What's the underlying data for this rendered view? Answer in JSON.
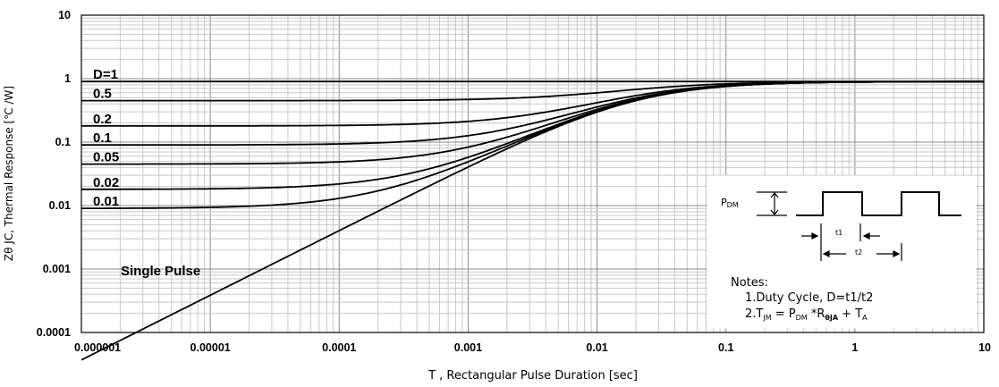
{
  "chart_data": {
    "type": "line",
    "xscale": "log",
    "yscale": "log",
    "xlim": [
      1e-06,
      10
    ],
    "ylim": [
      0.0001,
      10
    ],
    "xlabel": "T , Rectangular Pulse Duration [sec]",
    "ylabel": "Zθ JC, Thermal Response [℃ /W]",
    "xticks": [
      {
        "value": 1e-06,
        "label": "0.000001"
      },
      {
        "value": 1e-05,
        "label": "0.00001"
      },
      {
        "value": 0.0001,
        "label": "0.0001"
      },
      {
        "value": 0.001,
        "label": "0.001"
      },
      {
        "value": 0.01,
        "label": "0.01"
      },
      {
        "value": 0.1,
        "label": "0.1"
      },
      {
        "value": 1,
        "label": "1"
      },
      {
        "value": 10,
        "label": "10"
      }
    ],
    "yticks": [
      {
        "value": 10,
        "label": "10"
      },
      {
        "value": 1,
        "label": "1"
      },
      {
        "value": 0.1,
        "label": "0.1"
      },
      {
        "value": 0.01,
        "label": "0.01"
      },
      {
        "value": 0.001,
        "label": "0.001"
      },
      {
        "value": 0.0001,
        "label": "0.0001"
      }
    ],
    "grid": true,
    "steady_state": 0.9,
    "series": [
      {
        "name": "D=1",
        "duty": 1
      },
      {
        "name": "0.5",
        "duty": 0.5
      },
      {
        "name": "0.2",
        "duty": 0.2
      },
      {
        "name": "0.1",
        "duty": 0.1
      },
      {
        "name": "0.05",
        "duty": 0.05
      },
      {
        "name": "0.02",
        "duty": 0.02
      },
      {
        "name": "0.01",
        "duty": 0.01
      },
      {
        "name": "Single Pulse",
        "duty": 0
      }
    ]
  },
  "inset": {
    "pdm_label": "P",
    "pdm_sub": "DM",
    "t1_label": "t1",
    "t2_label": "t2",
    "notes_title": "Notes:",
    "note1": "1.Duty  Cycle, D=t1/t2",
    "note2_parts": [
      "2.T",
      "JM",
      " = P",
      "DM",
      " *R",
      "θJA",
      " + T",
      "A"
    ]
  }
}
